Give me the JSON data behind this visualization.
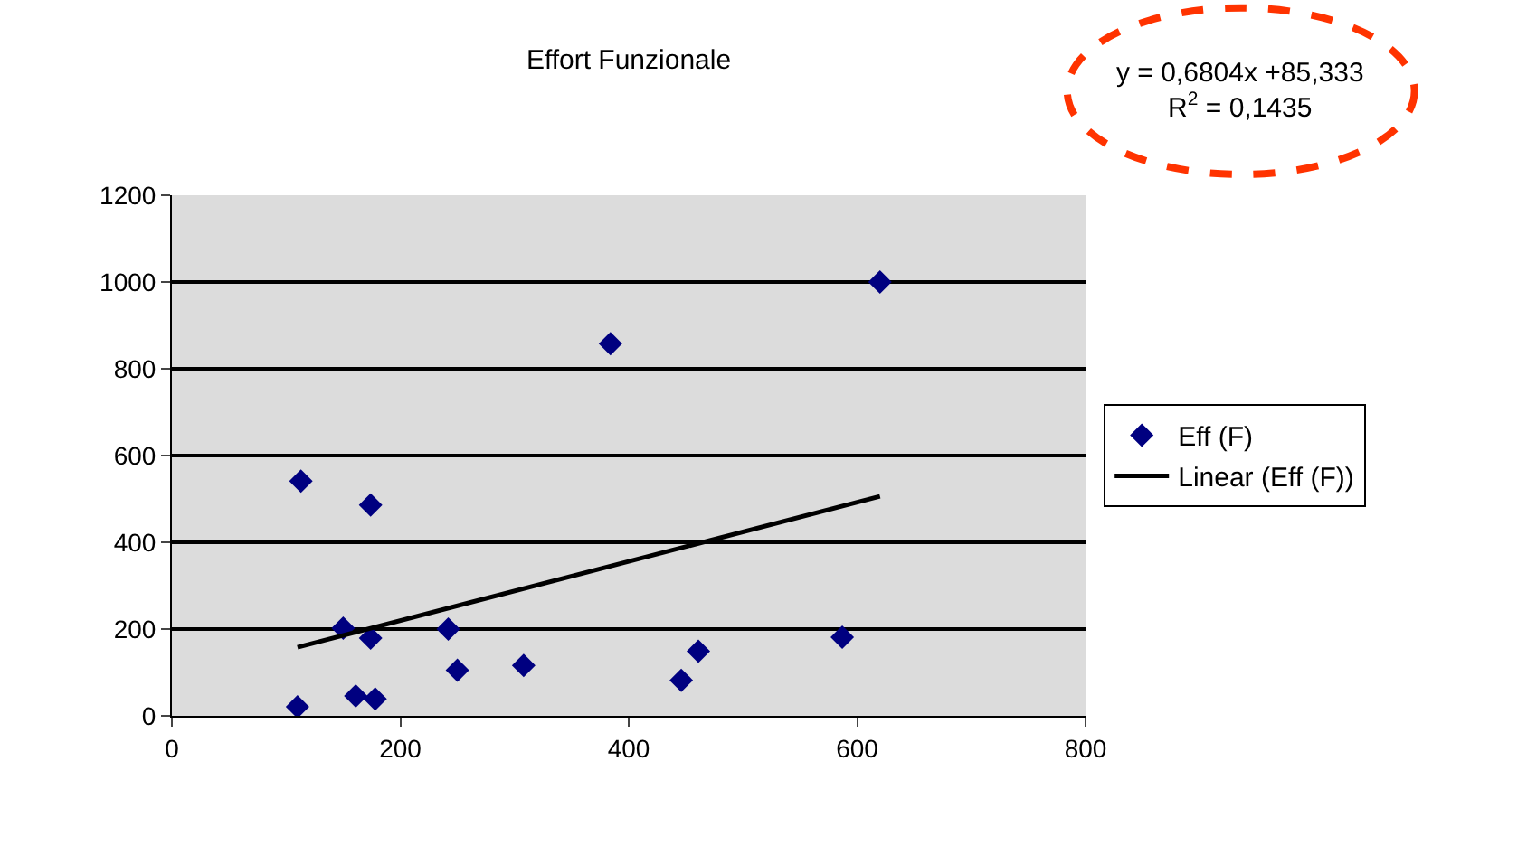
{
  "chart_data": {
    "type": "scatter",
    "title": "Effort Funzionale",
    "series": [
      {
        "name": "Eff (F)",
        "color": "#000080",
        "marker": "diamond",
        "x": [
          110,
          113,
          150,
          174,
          174,
          161,
          178,
          242,
          250,
          308,
          384,
          620,
          446,
          461,
          587
        ],
        "values": [
          21,
          541,
          202,
          179,
          486,
          46,
          39,
          200,
          105,
          116,
          858,
          1000,
          82,
          149,
          181
        ]
      },
      {
        "name": "Linear (Eff (F))",
        "type": "line",
        "color": "#000000",
        "line_style": "solid",
        "x": [
          110,
          620
        ],
        "values": [
          158,
          506
        ]
      }
    ],
    "annotations": [
      "y = 0,6804x +85,333\nR$^{2}$ = 0,1435"
    ],
    "xlim": [
      0,
      800
    ],
    "xticks": [
      0,
      200,
      400,
      600,
      800
    ],
    "ylim": [
      0,
      1200
    ],
    "yticks": [
      0,
      200,
      400,
      600,
      800,
      1000,
      1200
    ],
    "grid": "y",
    "legend": "right"
  }
}
